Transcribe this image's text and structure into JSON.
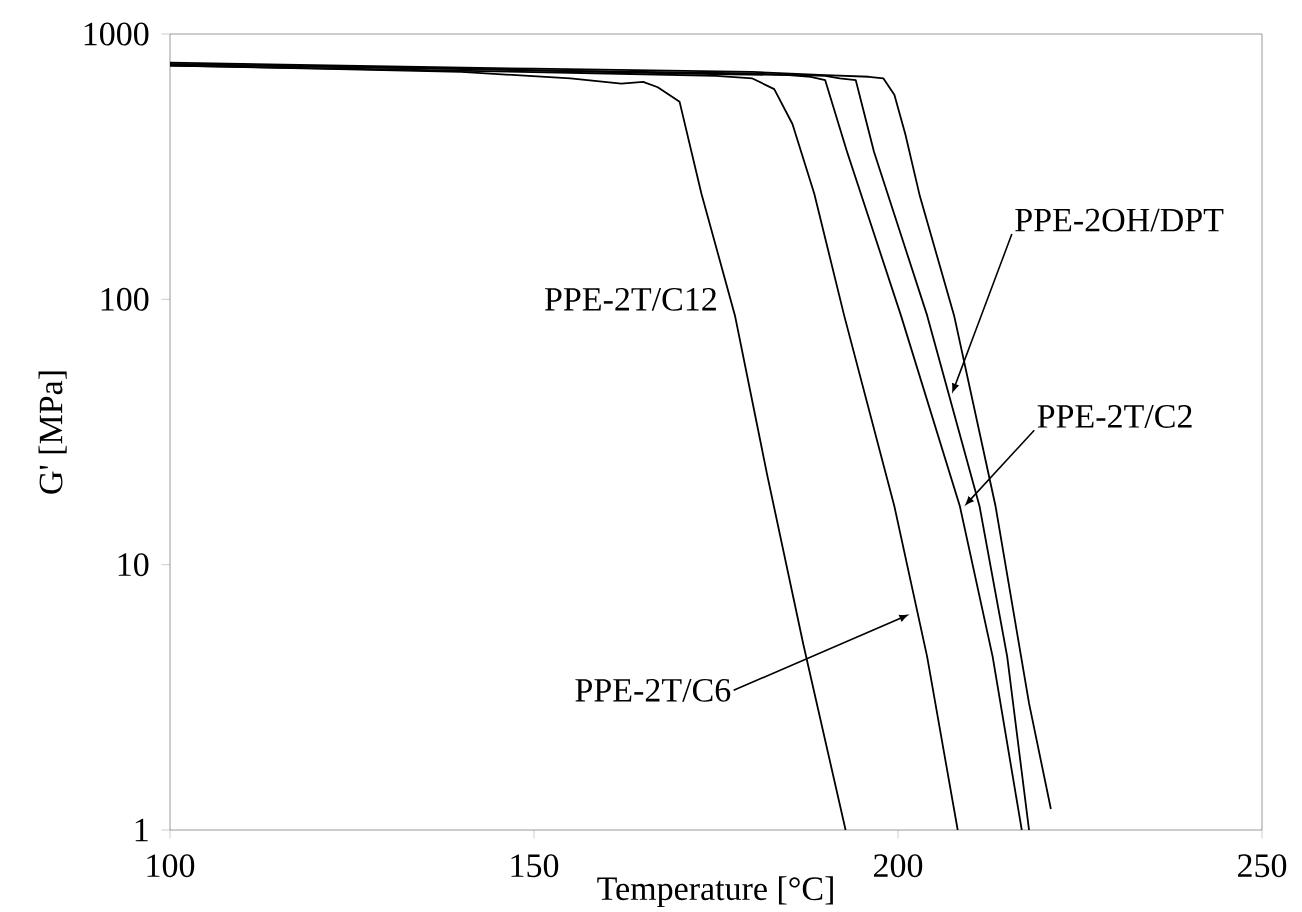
{
  "chart_data": {
    "type": "line",
    "xlabel": "Temperature [°C]",
    "ylabel": "G' [MPa]",
    "log": "y",
    "xlim": [
      100,
      250
    ],
    "xticks": [
      100,
      150,
      200,
      250
    ],
    "ylim": [
      1,
      1000
    ],
    "yticks": [
      1,
      10,
      100,
      1000
    ],
    "grid": false,
    "marker": "none",
    "line_style": "solid",
    "series": [
      {
        "color": "#000000",
        "x": [
          100,
          120,
          140,
          155,
          162,
          165,
          167,
          170,
          173,
          177.6,
          182,
          187,
          192.8
        ],
        "values": [
          760,
          740,
          720,
          680,
          650,
          660,
          630,
          555,
          250,
          87,
          22,
          5,
          1
        ]
      },
      {
        "color": "#000000",
        "x": [
          100,
          130,
          160,
          175,
          180,
          183,
          185.5,
          188.5,
          192.6,
          199.5,
          204,
          208.2
        ],
        "values": [
          760,
          735,
          710,
          695,
          680,
          620,
          458,
          250,
          87,
          16.6,
          4.5,
          1
        ]
      },
      {
        "color": "#000000",
        "x": [
          100,
          140,
          170,
          185,
          188,
          190,
          193,
          200.4,
          208.5,
          213,
          217
        ],
        "values": [
          770,
          740,
          710,
          700,
          690,
          670,
          360,
          87,
          16.6,
          4.5,
          1
        ]
      },
      {
        "color": "#000000",
        "x": [
          100,
          150,
          180,
          190,
          192,
          194.2,
          196.7,
          204,
          211.2,
          215,
          218
        ],
        "values": [
          770,
          730,
          710,
          695,
          680,
          670,
          360,
          87,
          16.6,
          4.5,
          1
        ]
      },
      {
        "color": "#000000",
        "x": [
          100,
          150,
          180,
          190,
          196,
          198,
          199.5,
          201,
          203,
          207.7,
          213.4,
          218,
          221
        ],
        "values": [
          780,
          740,
          720,
          700,
          690,
          680,
          590,
          420,
          245,
          87,
          16.6,
          3,
          1.2
        ]
      }
    ],
    "annotations": [
      {
        "text": "PPE-2T/C12",
        "x": 176.4,
        "y": 100
      },
      {
        "text": "PPE-2T/C6",
        "x": 201.6,
        "y": 6.5
      },
      {
        "text": "PPE-2OH/DPT",
        "x": 207.4,
        "y": 44
      },
      {
        "text": "PPE-2T/C2",
        "x": 209.1,
        "y": 16.6
      }
    ]
  }
}
